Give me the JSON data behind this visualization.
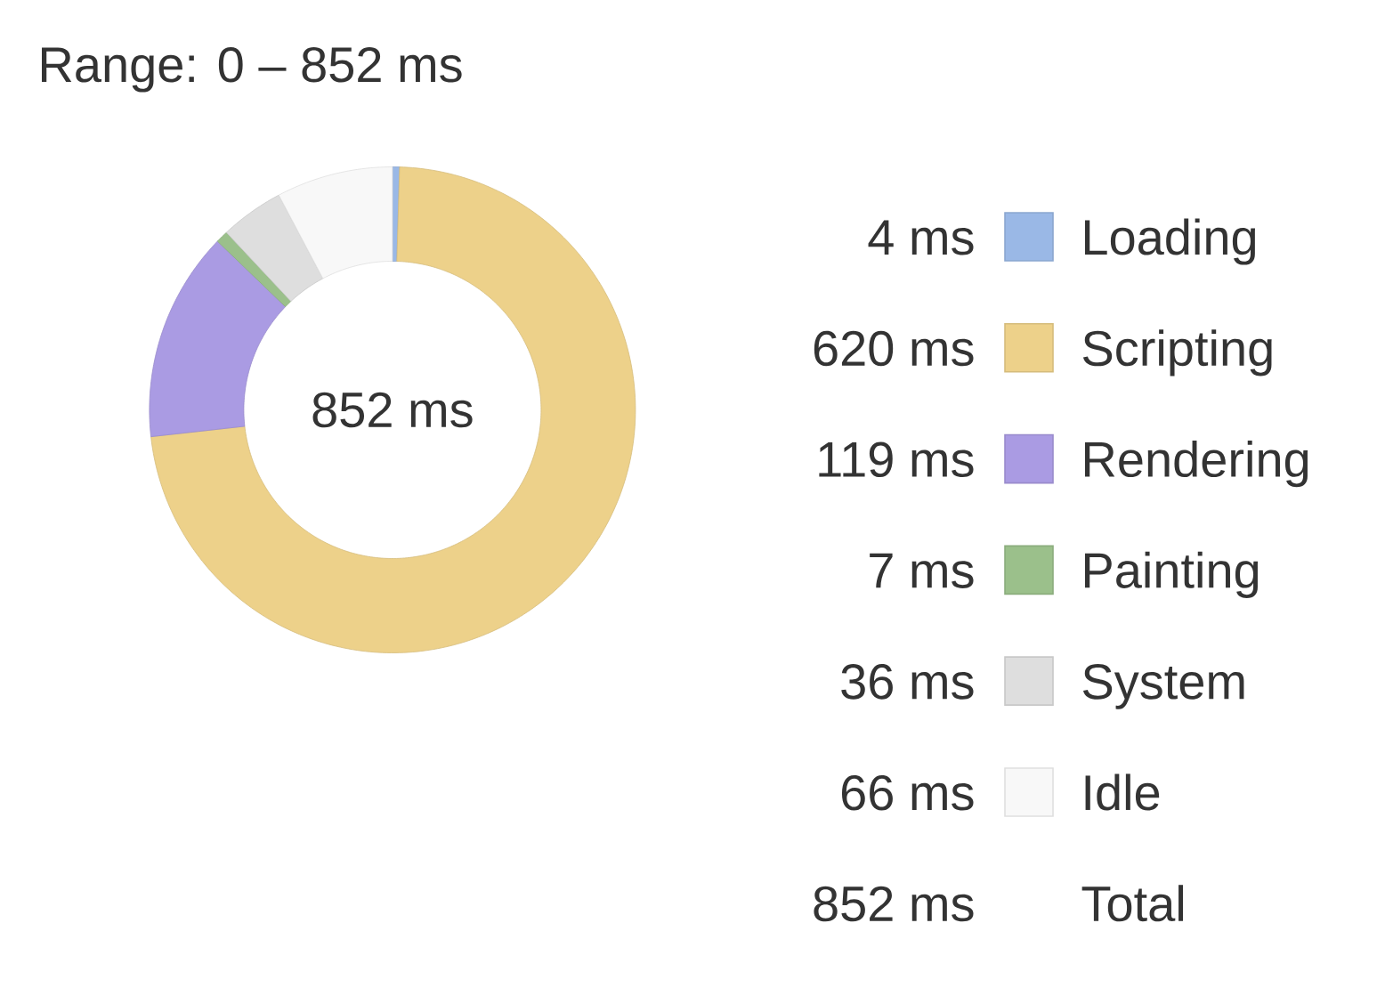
{
  "chart_data": {
    "type": "donut",
    "title": "Range: 0 – 852 ms",
    "categories": [
      "Loading",
      "Scripting",
      "Rendering",
      "Painting",
      "System",
      "Idle"
    ],
    "values": [
      4,
      620,
      119,
      7,
      36,
      66
    ],
    "colors": [
      "#9ab8e6",
      "#edd18a",
      "#aa9be3",
      "#9bc08b",
      "#dedede",
      "#f8f8f8"
    ],
    "value_labels": [
      "4 ms",
      "620 ms",
      "119 ms",
      "7 ms",
      "36 ms",
      "66 ms"
    ],
    "legend": "right",
    "annotations": [
      "852 ms",
      "852 ms",
      "Total"
    ]
  }
}
